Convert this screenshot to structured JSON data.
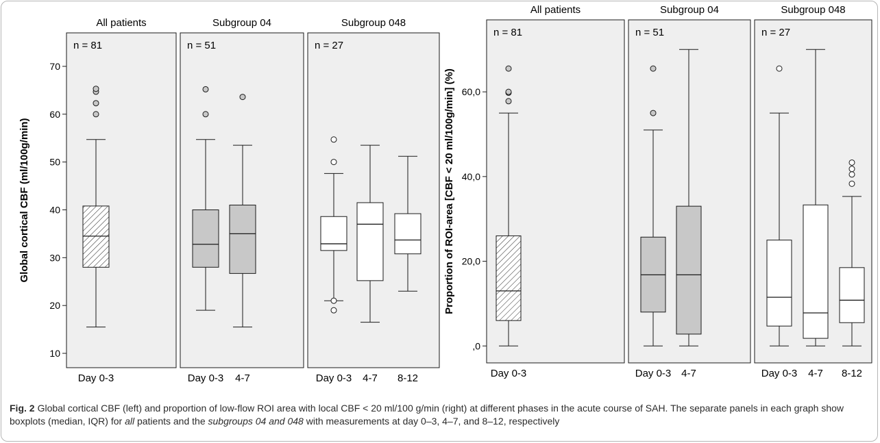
{
  "chart_data": [
    {
      "type": "box",
      "ylabel": "Global cortical CBF (ml/100g/min)",
      "ylim": [
        7,
        77
      ],
      "yticks": [
        10,
        20,
        30,
        40,
        50,
        60,
        70
      ],
      "ytick_labels": [
        "10",
        "20",
        "30",
        "40",
        "50",
        "60",
        "70"
      ],
      "panels": [
        {
          "title": "All patients",
          "n_label": "n = 81",
          "boxes": [
            {
              "label": "Day 0-3",
              "style": "hatched",
              "min": 15.5,
              "q1": 28,
              "median": 34.5,
              "q3": 40.8,
              "max": 54.7,
              "outliers": [
                60,
                62.3,
                64.7,
                65.3
              ]
            }
          ]
        },
        {
          "title": "Subgroup 04",
          "n_label": "n = 51",
          "boxes": [
            {
              "label": "Day 0-3",
              "style": "gray",
              "min": 19,
              "q1": 28,
              "median": 32.8,
              "q3": 40,
              "max": 54.7,
              "outliers": [
                60,
                65.2
              ]
            },
            {
              "label": "4-7",
              "style": "gray",
              "min": 15.5,
              "q1": 26.7,
              "median": 35,
              "q3": 41,
              "max": 53.5,
              "outliers": [
                63.6
              ]
            }
          ]
        },
        {
          "title": "Subgroup 048",
          "n_label": "n = 27",
          "boxes": [
            {
              "label": "Day 0-3",
              "style": "white",
              "min": 21,
              "q1": 31.5,
              "median": 32.9,
              "q3": 38.6,
              "max": 47.6,
              "outliers": [
                19,
                21,
                50,
                54.7
              ]
            },
            {
              "label": "4-7",
              "style": "white",
              "min": 16.5,
              "q1": 25.2,
              "median": 37,
              "q3": 41.5,
              "max": 53.5,
              "outliers": []
            },
            {
              "label": "8-12",
              "style": "white",
              "min": 23,
              "q1": 30.8,
              "median": 33.7,
              "q3": 39.2,
              "max": 51.2,
              "outliers": []
            }
          ]
        }
      ]
    },
    {
      "type": "box",
      "ylabel": "Proportion of ROI-area [CBF < 20 ml/100g/min] (%)",
      "ylim": [
        -4,
        77
      ],
      "yticks": [
        0,
        20,
        40,
        60
      ],
      "ytick_labels": [
        ",0",
        "20,0",
        "40,0",
        "60,0"
      ],
      "panels": [
        {
          "title": "All patients",
          "n_label": "n = 81",
          "boxes": [
            {
              "label": "Day 0-3",
              "style": "hatched",
              "min": 0,
              "q1": 6,
              "median": 13,
              "q3": 26,
              "max": 55,
              "outliers": [
                57.8,
                59.8,
                60,
                65.5
              ]
            }
          ]
        },
        {
          "title": "Subgroup 04",
          "n_label": "n = 51",
          "boxes": [
            {
              "label": "Day 0-3",
              "style": "gray",
              "min": 0,
              "q1": 8,
              "median": 16.8,
              "q3": 25.7,
              "max": 51,
              "outliers": [
                55,
                65.5
              ]
            },
            {
              "label": "4-7",
              "style": "gray",
              "min": 0,
              "q1": 2.8,
              "median": 16.8,
              "q3": 33,
              "max": 70,
              "outliers": []
            }
          ]
        },
        {
          "title": "Subgroup 048",
          "n_label": "n = 27",
          "boxes": [
            {
              "label": "Day 0-3",
              "style": "white",
              "min": 0,
              "q1": 4.7,
              "median": 11.5,
              "q3": 25,
              "max": 55,
              "outliers": [
                65.5
              ]
            },
            {
              "label": "4-7",
              "style": "white",
              "min": 0,
              "q1": 1.8,
              "median": 7.8,
              "q3": 33.3,
              "max": 70,
              "outliers": []
            },
            {
              "label": "8-12",
              "style": "white",
              "min": 0,
              "q1": 5.5,
              "median": 10.8,
              "q3": 18.5,
              "max": 35.3,
              "outliers": [
                38.3,
                40.5,
                41.8,
                43.3
              ]
            }
          ]
        }
      ]
    }
  ],
  "caption": {
    "label": "Fig. 2",
    "part1": "Global cortical CBF (left) and proportion of low-flow ROI area with local CBF < 20 ml/100 g/min (right) at different phases in the acute course of SAH. The separate panels in each graph show boxplots (median, IQR) for ",
    "all": "all",
    "part2": " patients and the ",
    "subgroups": "subgroups 04 and 048",
    "part3": " with measurements at day 0–3, 4–7, and 8–12, respectively"
  },
  "colors": {
    "panel_bg": "#efefef",
    "gray_box": "#c8c8c8",
    "white_box": "#ffffff",
    "stroke": "#1a1a1a"
  }
}
